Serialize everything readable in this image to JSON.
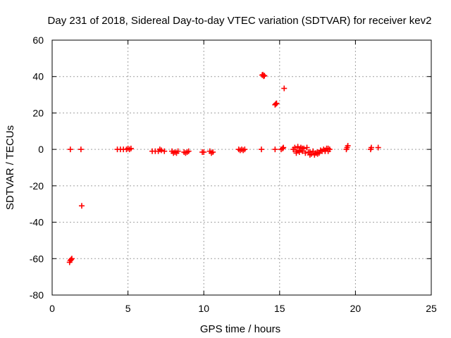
{
  "chart_data": {
    "type": "scatter",
    "title": "Day 231 of 2018, Sidereal Day-to-day VTEC variation (SDTVAR) for receiver kev2",
    "xlabel": "GPS time / hours",
    "ylabel": "SDTVAR / TECUs",
    "xlim": [
      0,
      25
    ],
    "ylim": [
      -80,
      60
    ],
    "xticks": [
      0,
      5,
      10,
      15,
      20,
      25
    ],
    "xtick_labels": [
      "0",
      "5",
      "10",
      "15",
      "20",
      "25"
    ],
    "yticks": [
      -80,
      -60,
      -40,
      -20,
      0,
      20,
      40,
      60
    ],
    "ytick_labels": [
      "-80",
      "-60",
      "-40",
      "-20",
      "0",
      "20",
      "40",
      "60"
    ],
    "grid": true,
    "marker": "+",
    "series_color": "#ff0000",
    "series": [
      {
        "name": "SDTVAR",
        "x": [
          1.2,
          1.9,
          1.95,
          1.15,
          1.2,
          1.25,
          1.3,
          4.3,
          4.5,
          4.7,
          4.9,
          5.0,
          5.1,
          5.2,
          6.6,
          6.8,
          7.0,
          7.1,
          7.2,
          7.4,
          7.9,
          8.0,
          8.1,
          8.2,
          8.3,
          8.7,
          8.8,
          8.9,
          9.0,
          9.9,
          10.0,
          10.4,
          10.5,
          10.6,
          12.3,
          12.4,
          12.5,
          12.6,
          12.7,
          13.8,
          13.9,
          14.0,
          13.85,
          13.95,
          14.7,
          14.75,
          14.8,
          14.7,
          15.1,
          15.2,
          15.3,
          15.25,
          15.9,
          16.0,
          16.1,
          16.2,
          16.3,
          16.4,
          16.5,
          16.6,
          16.7,
          16.8,
          16.9,
          17.0,
          17.1,
          17.2,
          17.3,
          17.4,
          17.5,
          17.6,
          17.7,
          17.8,
          17.9,
          18.0,
          18.1,
          18.2,
          18.3,
          16.1,
          16.3,
          16.5,
          17.0,
          17.5,
          18.0,
          18.2,
          19.4,
          19.5,
          19.45,
          21.0,
          21.05,
          21.5
        ],
        "y": [
          0,
          0,
          -31,
          -62,
          -61,
          -60.5,
          -60,
          0,
          0,
          0,
          0,
          0.5,
          0,
          0.5,
          -1,
          -1,
          -1,
          0,
          -0.5,
          -1,
          -1,
          -2,
          -1.5,
          -2,
          -1,
          -1.5,
          -2,
          -1.5,
          -1,
          -1.5,
          -1.5,
          -1,
          -2,
          -1.5,
          0,
          -0.5,
          0,
          -0.5,
          0,
          0,
          41,
          40.5,
          40.8,
          40.2,
          24.5,
          25,
          25.3,
          0,
          0,
          0.5,
          33.5,
          1,
          0,
          1,
          -1,
          1.5,
          -1.5,
          1,
          -1,
          0.5,
          -2,
          1,
          -1.5,
          -1.5,
          -2.5,
          -1,
          -3,
          -2,
          -1.5,
          -2,
          -0.5,
          -1,
          0,
          -0.5,
          0.5,
          -1,
          0,
          -2,
          -0.5,
          0.5,
          -3,
          -2.5,
          -1,
          0.5,
          0,
          2,
          1,
          0,
          1,
          1
        ]
      }
    ]
  }
}
